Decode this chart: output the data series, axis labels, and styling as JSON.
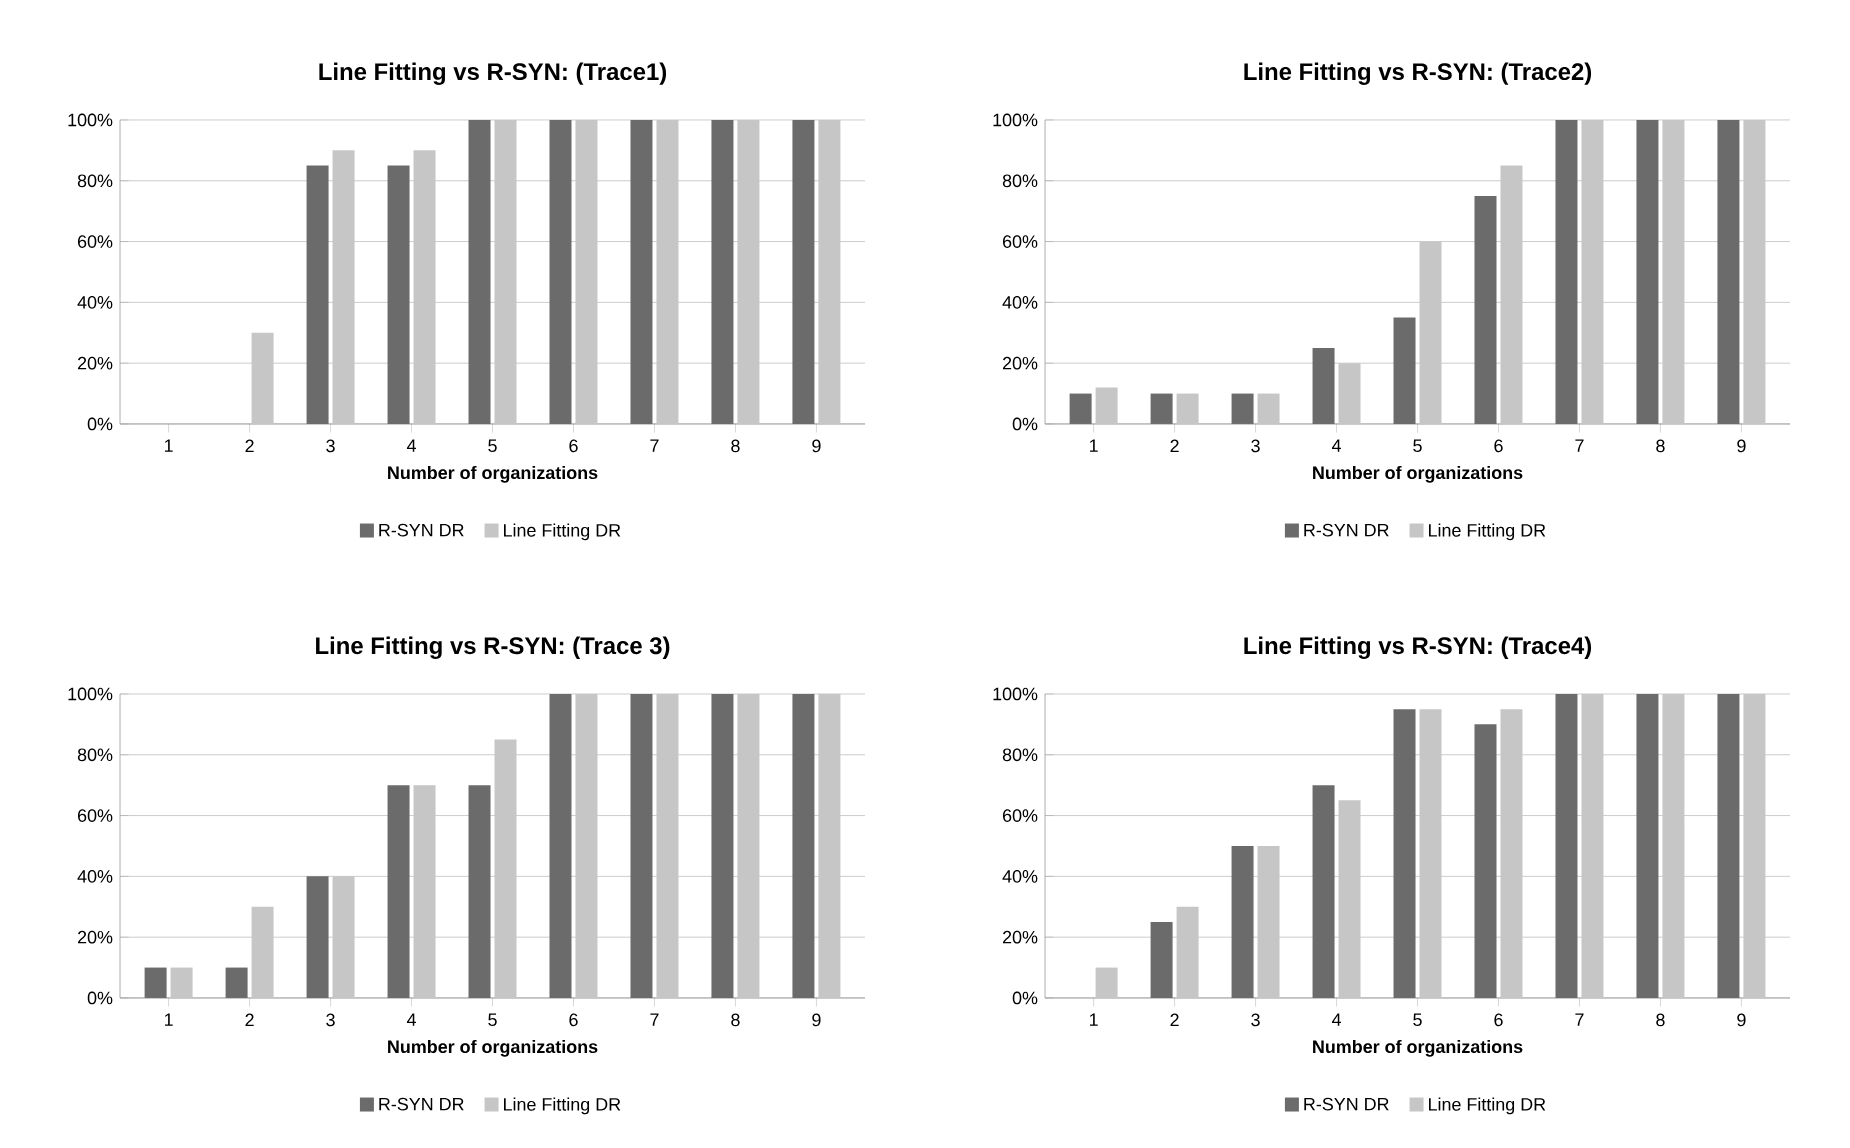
{
  "chart_data": [
    {
      "type": "bar",
      "title": "Line Fitting vs R-SYN: (Trace1)",
      "xlabel": "Number of organizations",
      "categories": [
        "1",
        "2",
        "3",
        "4",
        "5",
        "6",
        "7",
        "8",
        "9"
      ],
      "series": [
        {
          "name": "R-SYN DR",
          "color": "#6b6b6b",
          "values": [
            0,
            0,
            85,
            85,
            100,
            100,
            100,
            100,
            100
          ]
        },
        {
          "name": "Line Fitting DR",
          "color": "#c6c6c6",
          "values": [
            0,
            30,
            90,
            90,
            100,
            100,
            100,
            100,
            100
          ]
        }
      ],
      "ylim": [
        0,
        100
      ],
      "yticks": [
        {
          "value": 0,
          "label": "0%"
        },
        {
          "value": 20,
          "label": "20%"
        },
        {
          "value": 40,
          "label": "40%"
        },
        {
          "value": 60,
          "label": "60%"
        },
        {
          "value": 80,
          "label": "80%"
        },
        {
          "value": 100,
          "label": "100%"
        }
      ],
      "grid": "y",
      "legend": "bottom"
    },
    {
      "type": "bar",
      "title": "Line Fitting vs R-SYN: (Trace2)",
      "xlabel": "Number of organizations",
      "categories": [
        "1",
        "2",
        "3",
        "4",
        "5",
        "6",
        "7",
        "8",
        "9"
      ],
      "series": [
        {
          "name": "R-SYN DR",
          "color": "#6b6b6b",
          "values": [
            10,
            10,
            10,
            25,
            35,
            75,
            100,
            100,
            100
          ]
        },
        {
          "name": "Line Fitting DR",
          "color": "#c6c6c6",
          "values": [
            12,
            10,
            10,
            20,
            60,
            85,
            100,
            100,
            100
          ]
        }
      ],
      "ylim": [
        0,
        100
      ],
      "yticks": [
        {
          "value": 0,
          "label": "0%"
        },
        {
          "value": 20,
          "label": "20%"
        },
        {
          "value": 40,
          "label": "40%"
        },
        {
          "value": 60,
          "label": "60%"
        },
        {
          "value": 80,
          "label": "80%"
        },
        {
          "value": 100,
          "label": "100%"
        }
      ],
      "grid": "y",
      "legend": "bottom"
    },
    {
      "type": "bar",
      "title": "Line Fitting vs R-SYN: (Trace 3)",
      "xlabel": "Number of organizations",
      "categories": [
        "1",
        "2",
        "3",
        "4",
        "5",
        "6",
        "7",
        "8",
        "9"
      ],
      "series": [
        {
          "name": "R-SYN DR",
          "color": "#6b6b6b",
          "values": [
            10,
            10,
            40,
            70,
            70,
            100,
            100,
            100,
            100
          ]
        },
        {
          "name": "Line Fitting DR",
          "color": "#c6c6c6",
          "values": [
            10,
            30,
            40,
            70,
            85,
            100,
            100,
            100,
            100
          ]
        }
      ],
      "ylim": [
        0,
        100
      ],
      "yticks": [
        {
          "value": 0,
          "label": "0%"
        },
        {
          "value": 20,
          "label": "20%"
        },
        {
          "value": 40,
          "label": "40%"
        },
        {
          "value": 60,
          "label": "60%"
        },
        {
          "value": 80,
          "label": "80%"
        },
        {
          "value": 100,
          "label": "100%"
        }
      ],
      "grid": "y",
      "legend": "bottom"
    },
    {
      "type": "bar",
      "title": "Line Fitting vs R-SYN: (Trace4)",
      "xlabel": "Number of organizations",
      "categories": [
        "1",
        "2",
        "3",
        "4",
        "5",
        "6",
        "7",
        "8",
        "9"
      ],
      "series": [
        {
          "name": "R-SYN DR",
          "color": "#6b6b6b",
          "values": [
            0,
            25,
            50,
            70,
            95,
            90,
            100,
            100,
            100
          ]
        },
        {
          "name": "Line Fitting DR",
          "color": "#c6c6c6",
          "values": [
            10,
            30,
            50,
            65,
            95,
            95,
            100,
            100,
            100
          ]
        }
      ],
      "ylim": [
        0,
        100
      ],
      "yticks": [
        {
          "value": 0,
          "label": "0%"
        },
        {
          "value": 20,
          "label": "20%"
        },
        {
          "value": 40,
          "label": "40%"
        },
        {
          "value": 60,
          "label": "60%"
        },
        {
          "value": 80,
          "label": "80%"
        },
        {
          "value": 100,
          "label": "100%"
        }
      ],
      "grid": "y",
      "legend": "bottom"
    }
  ]
}
